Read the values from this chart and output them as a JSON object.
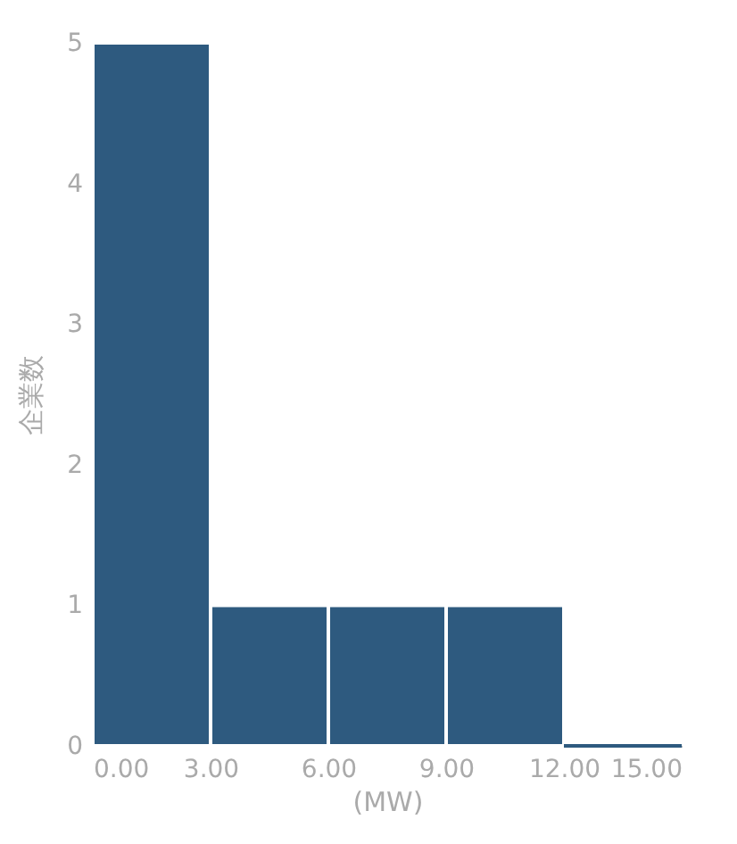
{
  "chart_data": {
    "type": "histogram",
    "xlabel": "(MW)",
    "ylabel": "企業数",
    "bins": [
      0,
      3,
      6,
      9,
      12,
      15
    ],
    "values": [
      5,
      1,
      1,
      1,
      0
    ],
    "color": "#2e5a7f",
    "xlim": [
      0,
      15
    ],
    "xticks": [
      {
        "value": 0,
        "label": "0.00"
      },
      {
        "value": 3,
        "label": "3.00"
      },
      {
        "value": 6,
        "label": "6.00"
      },
      {
        "value": 9,
        "label": "9.00"
      },
      {
        "value": 12,
        "label": "12.00"
      },
      {
        "value": 15,
        "label": "15.00"
      }
    ],
    "ylim": [
      0,
      5
    ],
    "yticks": [
      0,
      1,
      2,
      3,
      4,
      5
    ],
    "grid": false
  }
}
